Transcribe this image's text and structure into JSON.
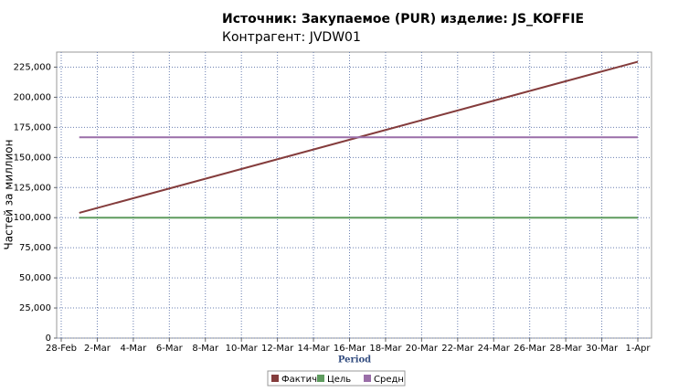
{
  "chart_data": {
    "type": "line",
    "title": "Источник: Закупаемое (PUR) изделие: JS_KOFFIE",
    "subtitle": "Контрагент: JVDW01",
    "x_label": "Period",
    "y_label": "Частей за миллион",
    "x": [
      "1-Mar",
      "1-Apr"
    ],
    "series": [
      {
        "name": "Фактич",
        "color": "#843c3c",
        "values": [
          104000,
          229500
        ]
      },
      {
        "name": "Цель",
        "color": "#5f9c5f",
        "values": [
          100000,
          100000
        ]
      },
      {
        "name": "Средн",
        "color": "#9a6ea8",
        "values": [
          166700,
          166700
        ]
      }
    ],
    "xlim": [
      "28-Feb",
      "1-Apr"
    ],
    "xticks": [
      "28-Feb",
      "2-Mar",
      "4-Mar",
      "6-Mar",
      "8-Mar",
      "10-Mar",
      "12-Mar",
      "14-Mar",
      "16-Mar",
      "18-Mar",
      "20-Mar",
      "22-Mar",
      "24-Mar",
      "26-Mar",
      "28-Mar",
      "30-Mar",
      "1-Apr"
    ],
    "ylim": [
      0,
      237500
    ],
    "yticks": [
      0,
      {
        "value": 25000,
        "label": "25,000"
      },
      {
        "value": 50000,
        "label": "50,000"
      },
      {
        "value": 75000,
        "label": "75,000"
      },
      {
        "value": 100000,
        "label": "100,000"
      },
      {
        "value": 125000,
        "label": "125,000"
      },
      {
        "value": 150000,
        "label": "150,000"
      },
      {
        "value": 175000,
        "label": "175,000"
      },
      {
        "value": 200000,
        "label": "200,000"
      },
      {
        "value": 225000,
        "label": "225,000"
      }
    ],
    "grid": true,
    "legend": "bottom"
  }
}
